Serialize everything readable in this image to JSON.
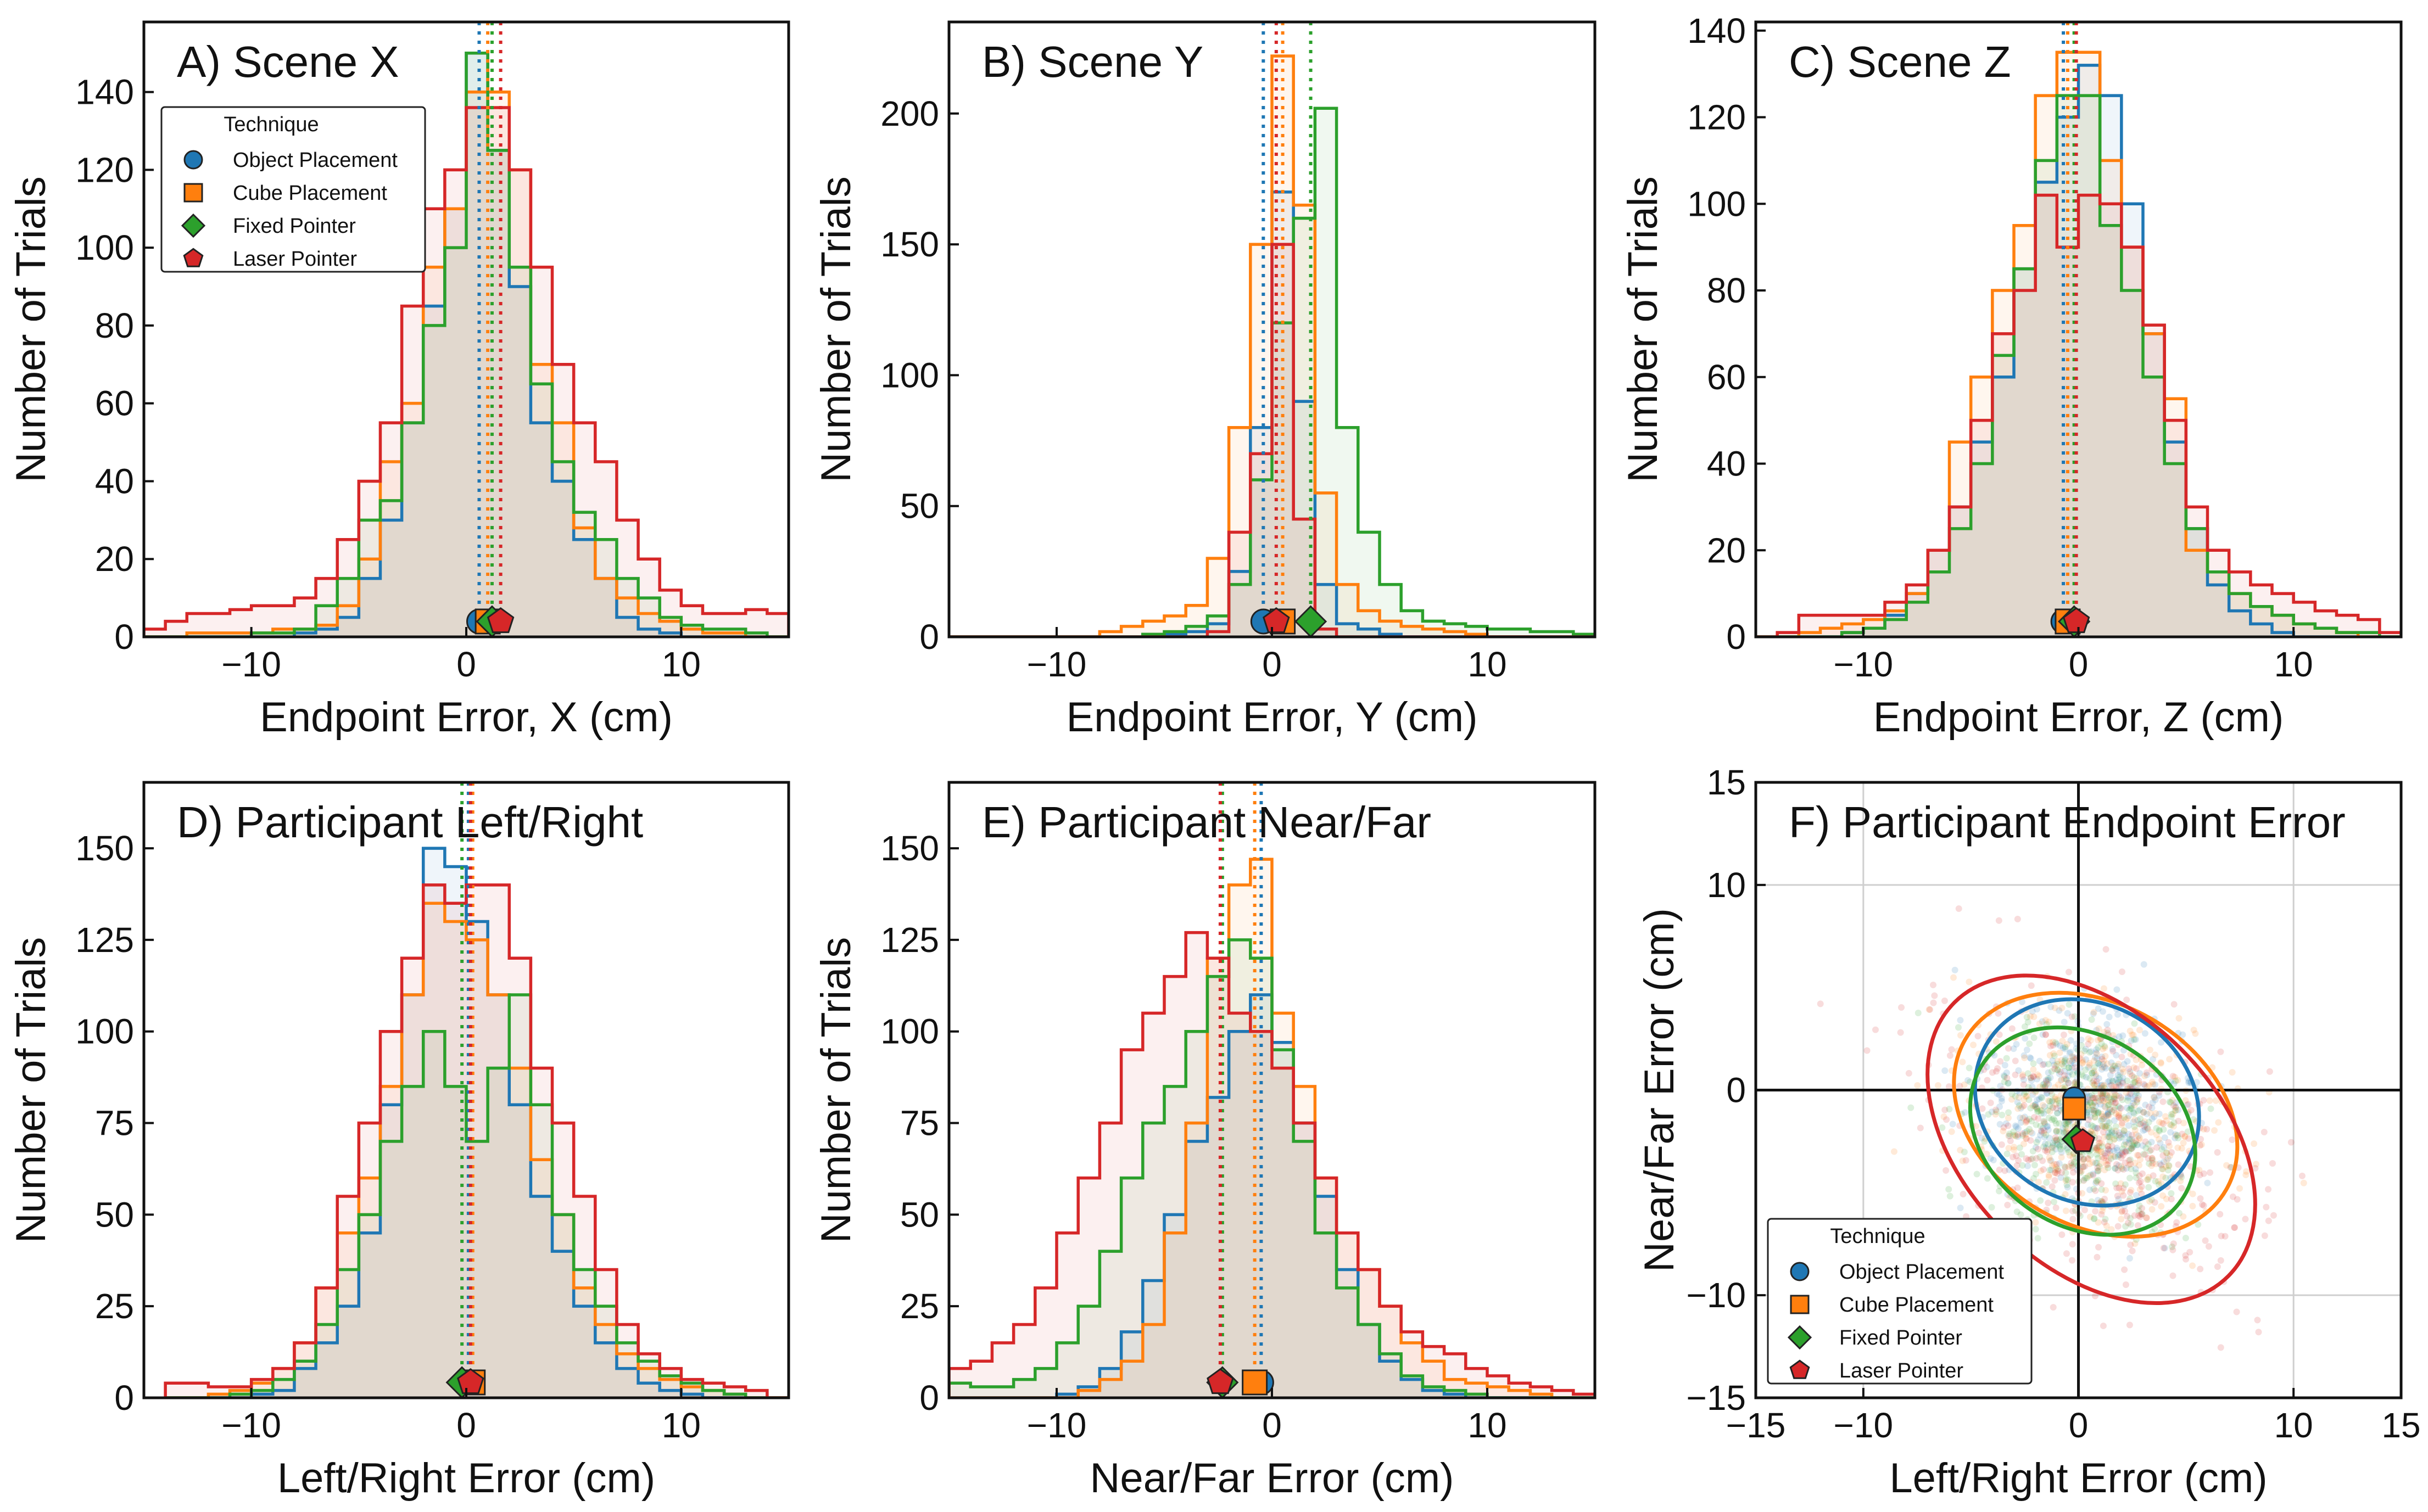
{
  "techniques": {
    "title": "Technique",
    "items": [
      {
        "name": "Object Placement",
        "color": "#1f77b4",
        "marker": "circle"
      },
      {
        "name": "Cube Placement",
        "color": "#ff7f0e",
        "marker": "square"
      },
      {
        "name": "Fixed Pointer",
        "color": "#2ca02c",
        "marker": "diamond"
      },
      {
        "name": "Laser Pointer",
        "color": "#d62728",
        "marker": "pentagon"
      }
    ]
  },
  "chart_data": [
    {
      "type": "histogram",
      "panel": "A",
      "title": "A) Scene X",
      "xlabel": "Endpoint Error, X (cm)",
      "ylabel": "Number of Trials",
      "xlim": [
        -15,
        15
      ],
      "ylim": [
        0,
        158
      ],
      "xticks": [
        -10,
        0,
        10
      ],
      "yticks": [
        0,
        20,
        40,
        60,
        80,
        100,
        120,
        140
      ],
      "legend": "upper-left",
      "means": [
        0.6,
        1.0,
        1.2,
        1.6
      ],
      "bins": [
        -15,
        -14,
        -13,
        -12,
        -11,
        -10,
        -9,
        -8,
        -7,
        -6,
        -5,
        -4,
        -3,
        -2,
        -1,
        0,
        1,
        2,
        3,
        4,
        5,
        6,
        7,
        8,
        9,
        10,
        11,
        12,
        13,
        14,
        15
      ],
      "series": [
        {
          "technique": "Object Placement",
          "counts": [
            0,
            0,
            0,
            0,
            0,
            0,
            0,
            1,
            2,
            5,
            15,
            30,
            55,
            85,
            110,
            150,
            125,
            90,
            55,
            40,
            25,
            15,
            5,
            2,
            1,
            0,
            0,
            0,
            0,
            0
          ]
        },
        {
          "technique": "Cube Placement",
          "counts": [
            0,
            0,
            1,
            1,
            1,
            1,
            2,
            2,
            3,
            8,
            20,
            45,
            60,
            95,
            110,
            140,
            140,
            120,
            70,
            55,
            28,
            15,
            10,
            6,
            4,
            2,
            1,
            1,
            0,
            0
          ]
        },
        {
          "technique": "Fixed Pointer",
          "counts": [
            0,
            0,
            0,
            0,
            0,
            1,
            1,
            2,
            8,
            15,
            30,
            35,
            55,
            80,
            100,
            150,
            125,
            95,
            65,
            45,
            32,
            25,
            15,
            10,
            5,
            3,
            2,
            2,
            1,
            0
          ]
        },
        {
          "technique": "Laser Pointer",
          "counts": [
            2,
            4,
            6,
            6,
            7,
            8,
            8,
            10,
            15,
            25,
            40,
            55,
            85,
            110,
            120,
            136,
            136,
            120,
            95,
            70,
            55,
            45,
            30,
            20,
            12,
            8,
            6,
            6,
            7,
            6
          ]
        }
      ]
    },
    {
      "type": "histogram",
      "panel": "B",
      "title": "B) Scene Y",
      "xlabel": "Endpoint Error, Y (cm)",
      "ylabel": "Number of Trials",
      "xlim": [
        -15,
        15
      ],
      "ylim": [
        0,
        235
      ],
      "xticks": [
        -10,
        0,
        10
      ],
      "yticks": [
        0,
        50,
        100,
        150,
        200
      ],
      "means": [
        -0.4,
        0.5,
        1.8,
        0.2
      ],
      "bins": [
        -15,
        -14,
        -13,
        -12,
        -11,
        -10,
        -9,
        -8,
        -7,
        -6,
        -5,
        -4,
        -3,
        -2,
        -1,
        0,
        1,
        2,
        3,
        4,
        5,
        6,
        7,
        8,
        9,
        10,
        11,
        12,
        13,
        14,
        15
      ],
      "series": [
        {
          "technique": "Object Placement",
          "counts": [
            0,
            0,
            0,
            0,
            0,
            0,
            0,
            0,
            0,
            1,
            1,
            2,
            5,
            25,
            80,
            170,
            90,
            20,
            5,
            3,
            1,
            0,
            0,
            0,
            0,
            0,
            0,
            0,
            0,
            0
          ]
        },
        {
          "technique": "Cube Placement",
          "counts": [
            0,
            0,
            0,
            0,
            0,
            0,
            0,
            2,
            4,
            6,
            8,
            12,
            30,
            80,
            150,
            222,
            165,
            55,
            20,
            10,
            6,
            4,
            3,
            2,
            1,
            0,
            0,
            0,
            0,
            0
          ]
        },
        {
          "technique": "Fixed Pointer",
          "counts": [
            0,
            0,
            0,
            0,
            0,
            0,
            0,
            0,
            0,
            1,
            2,
            4,
            8,
            20,
            60,
            120,
            160,
            202,
            80,
            40,
            20,
            10,
            6,
            5,
            4,
            3,
            3,
            2,
            2,
            1
          ]
        },
        {
          "technique": "Laser Pointer",
          "counts": [
            0,
            0,
            0,
            0,
            0,
            0,
            0,
            0,
            0,
            0,
            0,
            0,
            2,
            40,
            70,
            150,
            45,
            3,
            0,
            0,
            0,
            0,
            0,
            0,
            0,
            0,
            0,
            0,
            0,
            0
          ]
        }
      ]
    },
    {
      "type": "histogram",
      "panel": "C",
      "title": "C) Scene Z",
      "xlabel": "Endpoint Error, Z (cm)",
      "ylabel": "Number of Trials",
      "xlim": [
        -15,
        15
      ],
      "ylim": [
        0,
        142
      ],
      "xticks": [
        -10,
        0,
        10
      ],
      "yticks": [
        0,
        20,
        40,
        60,
        80,
        100,
        120,
        140
      ],
      "means": [
        -0.7,
        -0.5,
        -0.2,
        -0.1
      ],
      "bins": [
        -15,
        -14,
        -13,
        -12,
        -11,
        -10,
        -9,
        -8,
        -7,
        -6,
        -5,
        -4,
        -3,
        -2,
        -1,
        0,
        1,
        2,
        3,
        4,
        5,
        6,
        7,
        8,
        9,
        10,
        11,
        12,
        13,
        14,
        15
      ],
      "series": [
        {
          "technique": "Object Placement",
          "counts": [
            0,
            0,
            0,
            0,
            1,
            2,
            5,
            10,
            20,
            30,
            45,
            60,
            85,
            105,
            120,
            132,
            125,
            100,
            70,
            45,
            25,
            12,
            6,
            3,
            1,
            0,
            0,
            0,
            0,
            0
          ]
        },
        {
          "technique": "Cube Placement",
          "counts": [
            0,
            0,
            1,
            2,
            3,
            4,
            6,
            10,
            20,
            45,
            60,
            80,
            95,
            125,
            135,
            135,
            110,
            90,
            70,
            55,
            20,
            15,
            10,
            7,
            5,
            3,
            2,
            1,
            0,
            0
          ]
        },
        {
          "technique": "Fixed Pointer",
          "counts": [
            0,
            0,
            0,
            0,
            1,
            2,
            4,
            8,
            15,
            25,
            40,
            65,
            85,
            110,
            125,
            125,
            95,
            80,
            60,
            40,
            25,
            15,
            10,
            7,
            5,
            3,
            2,
            1,
            1,
            0
          ]
        },
        {
          "technique": "Laser Pointer",
          "counts": [
            0,
            1,
            5,
            5,
            5,
            5,
            8,
            12,
            20,
            30,
            50,
            70,
            80,
            102,
            90,
            102,
            100,
            90,
            72,
            50,
            30,
            20,
            15,
            12,
            10,
            8,
            6,
            5,
            4,
            1
          ]
        }
      ]
    },
    {
      "type": "histogram",
      "panel": "D",
      "title": "D) Participant Left/Right",
      "xlabel": "Left/Right Error (cm)",
      "ylabel": "Number of Trials",
      "xlim": [
        -15,
        15
      ],
      "ylim": [
        0,
        168
      ],
      "xticks": [
        -10,
        0,
        10
      ],
      "yticks": [
        0,
        25,
        50,
        75,
        100,
        125,
        150
      ],
      "means": [
        0.1,
        0.3,
        -0.2,
        0.2
      ],
      "bins": [
        -14,
        -13,
        -12,
        -11,
        -10,
        -9,
        -8,
        -7,
        -6,
        -5,
        -4,
        -3,
        -2,
        -1,
        0,
        1,
        2,
        3,
        4,
        5,
        6,
        7,
        8,
        9,
        10,
        11,
        12,
        13,
        14,
        15
      ],
      "series": [
        {
          "technique": "Object Placement",
          "counts": [
            0,
            0,
            0,
            0,
            1,
            2,
            8,
            15,
            25,
            45,
            80,
            110,
            150,
            145,
            130,
            110,
            80,
            55,
            40,
            25,
            15,
            8,
            4,
            2,
            1,
            0,
            0,
            0,
            0
          ]
        },
        {
          "technique": "Cube Placement",
          "counts": [
            0,
            0,
            1,
            2,
            4,
            8,
            15,
            30,
            45,
            60,
            85,
            110,
            135,
            130,
            125,
            110,
            90,
            65,
            50,
            30,
            20,
            12,
            8,
            5,
            3,
            2,
            1,
            0,
            0
          ]
        },
        {
          "technique": "Fixed Pointer",
          "counts": [
            0,
            0,
            0,
            1,
            2,
            5,
            10,
            20,
            35,
            50,
            70,
            85,
            100,
            85,
            70,
            90,
            110,
            80,
            50,
            35,
            25,
            15,
            10,
            6,
            4,
            2,
            1,
            0,
            0
          ]
        },
        {
          "technique": "Laser Pointer",
          "counts": [
            4,
            4,
            3,
            3,
            5,
            8,
            15,
            30,
            55,
            75,
            100,
            120,
            140,
            135,
            140,
            140,
            120,
            90,
            75,
            55,
            35,
            20,
            12,
            8,
            5,
            4,
            3,
            2,
            0
          ]
        }
      ]
    },
    {
      "type": "histogram",
      "panel": "E",
      "title": "E) Participant Near/Far",
      "xlabel": "Near/Far Error (cm)",
      "ylabel": "Number of Trials",
      "xlim": [
        -15,
        15
      ],
      "ylim": [
        0,
        168
      ],
      "xticks": [
        -10,
        0,
        10
      ],
      "yticks": [
        0,
        25,
        50,
        75,
        100,
        125,
        150
      ],
      "means": [
        -0.5,
        -0.8,
        -2.3,
        -2.4
      ],
      "bins": [
        -15,
        -14,
        -13,
        -12,
        -11,
        -10,
        -9,
        -8,
        -7,
        -6,
        -5,
        -4,
        -3,
        -2,
        -1,
        0,
        1,
        2,
        3,
        4,
        5,
        6,
        7,
        8,
        9,
        10,
        11,
        12,
        13,
        14,
        15
      ],
      "series": [
        {
          "technique": "Object Placement",
          "counts": [
            0,
            0,
            0,
            0,
            0,
            1,
            3,
            8,
            18,
            32,
            50,
            70,
            82,
            100,
            110,
            97,
            75,
            55,
            35,
            20,
            10,
            5,
            2,
            1,
            0,
            0,
            0,
            0,
            0,
            0
          ]
        },
        {
          "technique": "Cube Placement",
          "counts": [
            0,
            0,
            0,
            0,
            0,
            0,
            2,
            5,
            10,
            20,
            45,
            75,
            120,
            140,
            147,
            105,
            85,
            60,
            45,
            35,
            25,
            15,
            10,
            5,
            4,
            3,
            2,
            1,
            0,
            0
          ]
        },
        {
          "technique": "Fixed Pointer",
          "counts": [
            4,
            3,
            3,
            5,
            8,
            15,
            25,
            40,
            60,
            75,
            85,
            100,
            115,
            125,
            120,
            95,
            70,
            45,
            30,
            20,
            12,
            6,
            3,
            2,
            1,
            0,
            0,
            0,
            0,
            0
          ]
        },
        {
          "technique": "Laser Pointer",
          "counts": [
            8,
            10,
            15,
            20,
            30,
            45,
            60,
            75,
            95,
            105,
            115,
            127,
            120,
            105,
            100,
            90,
            75,
            60,
            45,
            35,
            25,
            18,
            14,
            12,
            8,
            6,
            4,
            3,
            2,
            1
          ]
        }
      ]
    },
    {
      "type": "scatter",
      "panel": "F",
      "title": "F) Participant Endpoint Error",
      "xlabel": "Left/Right Error (cm)",
      "ylabel": "Near/Far Error (cm)",
      "xlim": [
        -15,
        15
      ],
      "ylim": [
        -15,
        15
      ],
      "xticks": [
        -15,
        -10,
        0,
        10,
        15
      ],
      "yticks": [
        -15,
        -10,
        0,
        10,
        15
      ],
      "grid": true,
      "legend": "lower-left",
      "means": [
        {
          "x": -0.2,
          "y": -0.4
        },
        {
          "x": -0.2,
          "y": -0.9
        },
        {
          "x": -0.1,
          "y": -2.4
        },
        {
          "x": 0.2,
          "y": -2.5
        }
      ],
      "ellipses": [
        {
          "technique": "Object Placement",
          "cx": 0.4,
          "cy": -0.6,
          "rx": 5.4,
          "ry": 4.8,
          "angle": -30
        },
        {
          "technique": "Cube Placement",
          "cx": 0.8,
          "cy": -1.2,
          "rx": 7.0,
          "ry": 5.4,
          "angle": -30
        },
        {
          "technique": "Fixed Pointer",
          "cx": 0.2,
          "cy": -2.0,
          "rx": 5.6,
          "ry": 4.6,
          "angle": -35
        },
        {
          "technique": "Laser Pointer",
          "cx": 0.6,
          "cy": -2.4,
          "rx": 9.0,
          "ry": 6.2,
          "angle": -45
        }
      ]
    }
  ]
}
